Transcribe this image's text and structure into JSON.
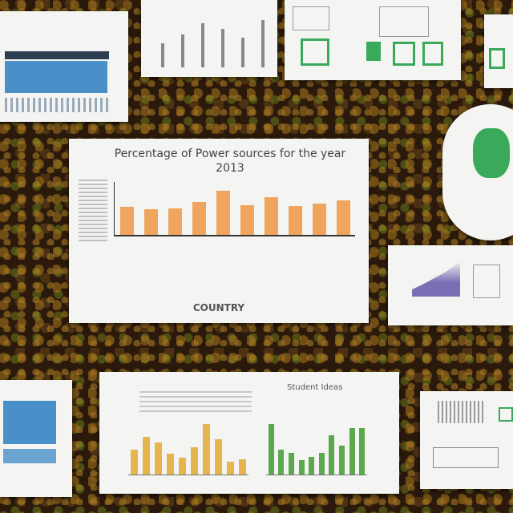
{
  "main_chart": {
    "title": "Percentage of Power sources for the year 2013",
    "xlabel": "COUNTRY",
    "bar_color": "#f0a55f"
  },
  "chart_data": {
    "type": "bar",
    "categories": [
      "",
      "",
      "",
      "",
      "",
      "",
      "",
      "",
      "",
      ""
    ],
    "values": [
      37,
      34,
      35,
      44,
      58,
      39,
      50,
      38,
      41,
      46
    ],
    "ylim": [
      0,
      70
    ],
    "grid": false,
    "title": "Percentage of Power sources for the year 2013",
    "xlabel": "COUNTRY"
  },
  "bottom_chart": {
    "title": "Student Ideas",
    "left_values": [
      30,
      45,
      38,
      25,
      20,
      32,
      60,
      42,
      15,
      18
    ],
    "left_color": "#e7b54e",
    "right_values": [
      70,
      35,
      30,
      20,
      25,
      30,
      55,
      40,
      65,
      65
    ],
    "right_color": "#5ca84e"
  },
  "colors": {
    "blue_panel": "#4a90c8",
    "green_panel": "#3aa95a",
    "purple_area": "#7a6fb5"
  }
}
